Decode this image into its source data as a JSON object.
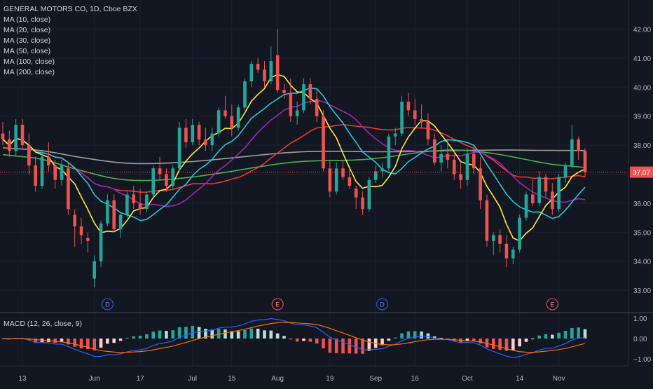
{
  "header": {
    "title": "GENERAL MOTORS CO, 1D, Cboe BZX",
    "indicators": [
      "MA (10, close)",
      "MA (20, close)",
      "MA (30, close)",
      "MA (50, close)",
      "MA (100, close)",
      "MA (200, close)"
    ]
  },
  "macd": {
    "label": "MACD (12, 26, close, 9)",
    "ticks": [
      "1.00",
      "0.00",
      "−1.00"
    ],
    "tick_values": [
      1,
      0,
      -1
    ]
  },
  "colors": {
    "background": "#131722",
    "grid": "#1e222d",
    "up": "#26a69a",
    "down": "#ef5350",
    "ma10": "#ffeb3b",
    "ma20": "#26c6da",
    "ma30": "#9c27b0",
    "ma50": "#e53935",
    "ma100": "#4caf50",
    "ma200": "#9e9e9e",
    "price_label": "#ef5350",
    "macd_line": "#2962ff",
    "signal_line": "#ff6d00"
  },
  "chart_data": {
    "type": "candlestick",
    "title": "GENERAL MOTORS CO, 1D, Cboe BZX",
    "x_ticks": [
      "13",
      "Jun",
      "17",
      "Jul",
      "15",
      "Aug",
      "19",
      "Sep",
      "16",
      "Oct",
      "14",
      "Nov"
    ],
    "x_tick_index": [
      3,
      14,
      21,
      29,
      35,
      42,
      50,
      57,
      63,
      71,
      79,
      85
    ],
    "y_ticks": [
      "42.00",
      "41.00",
      "40.00",
      "39.00",
      "38.00",
      "37.00",
      "36.00",
      "35.00",
      "34.00",
      "33.00"
    ],
    "y_tick_values": [
      42,
      41,
      40,
      39,
      38,
      37,
      36,
      35,
      34,
      33
    ],
    "ylim": [
      32.6,
      42.6
    ],
    "last_price": "37.07",
    "last_value": 37.07,
    "events": [
      {
        "label": "D",
        "index": 16
      },
      {
        "label": "E",
        "index": 42
      },
      {
        "label": "D",
        "index": 58
      },
      {
        "label": "E",
        "index": 84
      }
    ],
    "candles": [
      [
        38.4,
        38.8,
        38.0,
        38.2
      ],
      [
        38.2,
        38.5,
        37.6,
        37.8
      ],
      [
        37.8,
        38.9,
        37.6,
        38.7
      ],
      [
        38.7,
        38.9,
        37.9,
        38.0
      ],
      [
        38.0,
        38.4,
        37.0,
        37.3
      ],
      [
        37.3,
        37.6,
        36.4,
        36.6
      ],
      [
        36.6,
        37.8,
        36.5,
        37.6
      ],
      [
        37.6,
        38.1,
        37.1,
        37.3
      ],
      [
        37.3,
        37.5,
        36.5,
        36.8
      ],
      [
        36.8,
        37.5,
        36.6,
        37.3
      ],
      [
        37.2,
        37.4,
        35.6,
        35.8
      ],
      [
        35.6,
        35.8,
        34.5,
        35.2
      ],
      [
        35.2,
        35.5,
        34.6,
        34.9
      ],
      [
        34.8,
        35.0,
        34.3,
        34.7
      ],
      [
        33.4,
        34.2,
        33.1,
        34.0
      ],
      [
        34.0,
        35.4,
        33.8,
        35.3
      ],
      [
        35.3,
        36.3,
        35.2,
        36.1
      ],
      [
        36.1,
        36.3,
        35.0,
        35.1
      ],
      [
        35.1,
        35.7,
        34.8,
        35.6
      ],
      [
        35.6,
        36.4,
        35.5,
        36.3
      ],
      [
        36.3,
        36.6,
        35.8,
        36.0
      ],
      [
        36.0,
        36.5,
        35.6,
        35.8
      ],
      [
        35.8,
        36.4,
        35.7,
        36.3
      ],
      [
        36.3,
        37.3,
        36.2,
        37.2
      ],
      [
        37.2,
        37.6,
        36.8,
        37.0
      ],
      [
        37.0,
        37.2,
        36.4,
        36.6
      ],
      [
        36.6,
        37.3,
        36.5,
        37.2
      ],
      [
        37.2,
        38.8,
        37.1,
        38.6
      ],
      [
        38.6,
        38.9,
        37.9,
        38.1
      ],
      [
        38.1,
        38.9,
        38.0,
        38.7
      ],
      [
        38.7,
        38.8,
        38.0,
        38.2
      ],
      [
        38.2,
        38.6,
        37.8,
        38.0
      ],
      [
        38.0,
        38.6,
        37.8,
        38.4
      ],
      [
        38.4,
        39.3,
        38.3,
        39.2
      ],
      [
        39.2,
        39.7,
        38.9,
        39.0
      ],
      [
        39.0,
        39.4,
        38.3,
        38.6
      ],
      [
        38.6,
        39.4,
        38.5,
        39.3
      ],
      [
        39.3,
        40.3,
        39.2,
        40.2
      ],
      [
        40.2,
        40.9,
        40.0,
        40.8
      ],
      [
        40.8,
        41.0,
        40.5,
        40.6
      ],
      [
        40.6,
        40.9,
        40.0,
        40.2
      ],
      [
        40.2,
        41.4,
        40.1,
        40.9
      ],
      [
        41.1,
        42.0,
        39.8,
        39.9
      ],
      [
        39.9,
        40.1,
        39.6,
        39.8
      ],
      [
        39.8,
        40.3,
        38.8,
        39.0
      ],
      [
        39.0,
        39.5,
        38.7,
        39.2
      ],
      [
        39.2,
        40.3,
        39.1,
        40.1
      ],
      [
        40.1,
        40.3,
        39.4,
        39.6
      ],
      [
        39.6,
        39.9,
        38.8,
        39.0
      ],
      [
        39.0,
        39.2,
        37.1,
        37.2
      ],
      [
        37.2,
        37.5,
        36.2,
        36.4
      ],
      [
        36.4,
        37.4,
        36.3,
        37.2
      ],
      [
        37.2,
        37.5,
        36.8,
        36.9
      ],
      [
        36.9,
        37.2,
        36.5,
        36.6
      ],
      [
        36.5,
        36.6,
        35.8,
        36.2
      ],
      [
        36.2,
        36.4,
        35.6,
        35.8
      ],
      [
        35.8,
        36.9,
        35.7,
        36.8
      ],
      [
        36.8,
        37.3,
        36.7,
        37.1
      ],
      [
        37.1,
        37.4,
        36.9,
        37.2
      ],
      [
        37.2,
        38.4,
        37.1,
        38.3
      ],
      [
        38.3,
        38.6,
        38.0,
        38.4
      ],
      [
        38.4,
        39.7,
        38.3,
        39.5
      ],
      [
        39.5,
        39.8,
        39.0,
        39.2
      ],
      [
        39.2,
        39.6,
        38.7,
        38.9
      ],
      [
        38.9,
        39.4,
        38.6,
        38.8
      ],
      [
        38.8,
        39.1,
        38.0,
        38.2
      ],
      [
        38.2,
        38.4,
        37.3,
        37.4
      ],
      [
        37.4,
        38.0,
        37.1,
        37.7
      ],
      [
        37.7,
        38.2,
        37.2,
        37.5
      ],
      [
        37.5,
        37.8,
        36.8,
        37.0
      ],
      [
        37.0,
        37.4,
        36.5,
        36.8
      ],
      [
        36.8,
        37.9,
        36.6,
        37.7
      ],
      [
        37.7,
        38.0,
        37.0,
        37.2
      ],
      [
        37.2,
        37.6,
        35.8,
        36.1
      ],
      [
        36.1,
        36.3,
        34.5,
        34.7
      ],
      [
        34.7,
        35.0,
        34.2,
        34.9
      ],
      [
        34.9,
        35.1,
        34.3,
        34.6
      ],
      [
        34.6,
        34.9,
        33.8,
        34.1
      ],
      [
        34.1,
        34.5,
        33.9,
        34.4
      ],
      [
        34.4,
        35.6,
        34.3,
        35.5
      ],
      [
        35.5,
        36.4,
        35.4,
        36.3
      ],
      [
        36.3,
        36.8,
        35.9,
        36.0
      ],
      [
        36.0,
        37.1,
        35.9,
        36.9
      ],
      [
        36.9,
        37.0,
        36.2,
        36.4
      ],
      [
        36.4,
        36.7,
        35.6,
        35.8
      ],
      [
        35.8,
        37.0,
        35.7,
        36.9
      ],
      [
        36.9,
        37.4,
        36.7,
        37.3
      ],
      [
        37.3,
        38.7,
        37.2,
        38.2
      ],
      [
        38.2,
        38.3,
        37.5,
        37.8
      ],
      [
        37.8,
        37.9,
        36.9,
        37.07
      ]
    ]
  }
}
